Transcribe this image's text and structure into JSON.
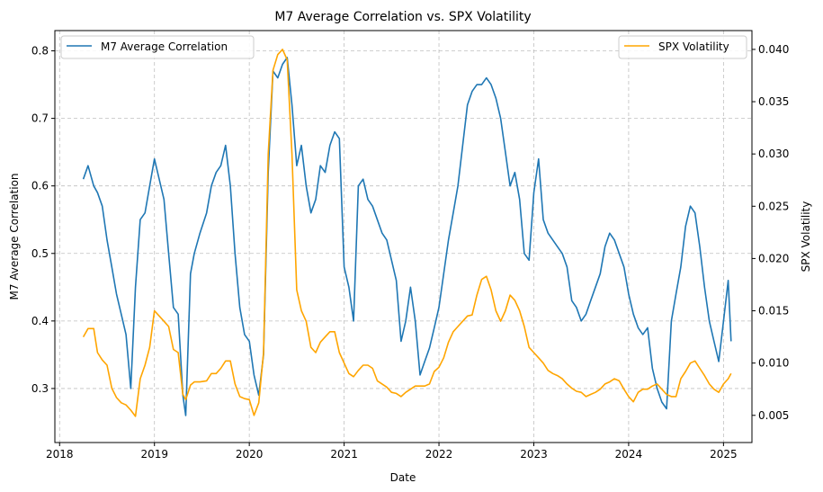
{
  "chart_data": {
    "type": "line",
    "title": "M7 Average Correlation vs. SPX Volatility",
    "xlabel": "Date",
    "ylabel": "M7 Average Correlation",
    "y2label": "SPX Volatility",
    "xlim": [
      2017.95,
      2025.3
    ],
    "ylim": [
      0.22,
      0.83
    ],
    "y2lim": [
      0.0024,
      0.0418
    ],
    "x_ticks": [
      "2018",
      "2019",
      "2020",
      "2021",
      "2022",
      "2023",
      "2024",
      "2025"
    ],
    "y_ticks": [
      "0.3",
      "0.4",
      "0.5",
      "0.6",
      "0.7",
      "0.8"
    ],
    "y2_ticks": [
      "0.005",
      "0.010",
      "0.015",
      "0.020",
      "0.025",
      "0.030",
      "0.035",
      "0.040"
    ],
    "grid": true,
    "series": [
      {
        "name": "M7 Average Correlation",
        "color": "#1f77b4",
        "axis": "left",
        "legend": "top-left",
        "x": [
          2018.25,
          2018.3,
          2018.36,
          2018.4,
          2018.45,
          2018.5,
          2018.55,
          2018.6,
          2018.65,
          2018.7,
          2018.75,
          2018.8,
          2018.85,
          2018.9,
          2018.95,
          2019.0,
          2019.05,
          2019.1,
          2019.15,
          2019.2,
          2019.25,
          2019.3,
          2019.33,
          2019.38,
          2019.42,
          2019.48,
          2019.55,
          2019.6,
          2019.65,
          2019.7,
          2019.75,
          2019.8,
          2019.85,
          2019.9,
          2019.95,
          2020.0,
          2020.05,
          2020.1,
          2020.15,
          2020.2,
          2020.25,
          2020.3,
          2020.35,
          2020.4,
          2020.45,
          2020.5,
          2020.55,
          2020.6,
          2020.65,
          2020.7,
          2020.75,
          2020.8,
          2020.85,
          2020.9,
          2020.95,
          2021.0,
          2021.05,
          2021.1,
          2021.15,
          2021.2,
          2021.25,
          2021.3,
          2021.35,
          2021.4,
          2021.45,
          2021.5,
          2021.55,
          2021.6,
          2021.65,
          2021.7,
          2021.75,
          2021.8,
          2021.85,
          2021.9,
          2021.95,
          2022.0,
          2022.05,
          2022.1,
          2022.15,
          2022.2,
          2022.25,
          2022.3,
          2022.35,
          2022.4,
          2022.45,
          2022.5,
          2022.55,
          2022.6,
          2022.65,
          2022.7,
          2022.75,
          2022.8,
          2022.85,
          2022.9,
          2022.95,
          2023.0,
          2023.05,
          2023.1,
          2023.15,
          2023.2,
          2023.25,
          2023.3,
          2023.35,
          2023.4,
          2023.45,
          2023.5,
          2023.55,
          2023.6,
          2023.65,
          2023.7,
          2023.75,
          2023.8,
          2023.85,
          2023.9,
          2023.95,
          2024.0,
          2024.05,
          2024.1,
          2024.15,
          2024.2,
          2024.25,
          2024.3,
          2024.35,
          2024.4,
          2024.45,
          2024.5,
          2024.55,
          2024.6,
          2024.65,
          2024.7,
          2024.75,
          2024.8,
          2024.85,
          2024.9,
          2024.95,
          2025.0,
          2025.05,
          2025.08
        ],
        "values": [
          0.61,
          0.63,
          0.6,
          0.59,
          0.57,
          0.52,
          0.48,
          0.44,
          0.41,
          0.38,
          0.3,
          0.45,
          0.55,
          0.56,
          0.6,
          0.64,
          0.61,
          0.58,
          0.5,
          0.42,
          0.41,
          0.29,
          0.26,
          0.47,
          0.5,
          0.53,
          0.56,
          0.6,
          0.62,
          0.63,
          0.66,
          0.6,
          0.5,
          0.42,
          0.38,
          0.37,
          0.32,
          0.29,
          0.35,
          0.62,
          0.77,
          0.76,
          0.78,
          0.79,
          0.72,
          0.63,
          0.66,
          0.6,
          0.56,
          0.58,
          0.63,
          0.62,
          0.66,
          0.68,
          0.67,
          0.48,
          0.45,
          0.4,
          0.6,
          0.61,
          0.58,
          0.57,
          0.55,
          0.53,
          0.52,
          0.49,
          0.46,
          0.37,
          0.4,
          0.45,
          0.4,
          0.32,
          0.34,
          0.36,
          0.39,
          0.42,
          0.47,
          0.52,
          0.56,
          0.6,
          0.66,
          0.72,
          0.74,
          0.75,
          0.75,
          0.76,
          0.75,
          0.73,
          0.7,
          0.65,
          0.6,
          0.62,
          0.58,
          0.5,
          0.49,
          0.59,
          0.64,
          0.55,
          0.53,
          0.52,
          0.51,
          0.5,
          0.48,
          0.43,
          0.42,
          0.4,
          0.41,
          0.43,
          0.45,
          0.47,
          0.51,
          0.53,
          0.52,
          0.5,
          0.48,
          0.44,
          0.41,
          0.39,
          0.38,
          0.39,
          0.33,
          0.3,
          0.28,
          0.27,
          0.4,
          0.44,
          0.48,
          0.54,
          0.57,
          0.56,
          0.51,
          0.45,
          0.4,
          0.37,
          0.34,
          0.4,
          0.46,
          0.37
        ]
      },
      {
        "name": "SPX Volatility",
        "color": "#ffa500",
        "axis": "right",
        "legend": "top-right",
        "x": [
          2018.25,
          2018.3,
          2018.36,
          2018.4,
          2018.45,
          2018.5,
          2018.55,
          2018.6,
          2018.65,
          2018.7,
          2018.75,
          2018.8,
          2018.85,
          2018.9,
          2018.95,
          2019.0,
          2019.05,
          2019.1,
          2019.15,
          2019.2,
          2019.25,
          2019.3,
          2019.33,
          2019.38,
          2019.42,
          2019.48,
          2019.55,
          2019.6,
          2019.65,
          2019.7,
          2019.75,
          2019.8,
          2019.85,
          2019.9,
          2019.95,
          2020.0,
          2020.05,
          2020.1,
          2020.15,
          2020.2,
          2020.25,
          2020.3,
          2020.35,
          2020.4,
          2020.45,
          2020.5,
          2020.55,
          2020.6,
          2020.65,
          2020.7,
          2020.75,
          2020.8,
          2020.85,
          2020.9,
          2020.95,
          2021.0,
          2021.05,
          2021.1,
          2021.15,
          2021.2,
          2021.25,
          2021.3,
          2021.35,
          2021.4,
          2021.45,
          2021.5,
          2021.55,
          2021.6,
          2021.65,
          2021.7,
          2021.75,
          2021.8,
          2021.85,
          2021.9,
          2021.95,
          2022.0,
          2022.05,
          2022.1,
          2022.15,
          2022.2,
          2022.25,
          2022.3,
          2022.35,
          2022.4,
          2022.45,
          2022.5,
          2022.55,
          2022.6,
          2022.65,
          2022.7,
          2022.75,
          2022.8,
          2022.85,
          2022.9,
          2022.95,
          2023.0,
          2023.05,
          2023.1,
          2023.15,
          2023.2,
          2023.25,
          2023.3,
          2023.35,
          2023.4,
          2023.45,
          2023.5,
          2023.55,
          2023.6,
          2023.65,
          2023.7,
          2023.75,
          2023.8,
          2023.85,
          2023.9,
          2023.95,
          2024.0,
          2024.05,
          2024.1,
          2024.15,
          2024.2,
          2024.25,
          2024.3,
          2024.35,
          2024.4,
          2024.45,
          2024.5,
          2024.55,
          2024.6,
          2024.65,
          2024.7,
          2024.75,
          2024.8,
          2024.85,
          2024.9,
          2024.95,
          2025.0,
          2025.05,
          2025.08
        ],
        "values": [
          0.0125,
          0.0133,
          0.0133,
          0.011,
          0.0103,
          0.0098,
          0.0076,
          0.0067,
          0.0062,
          0.006,
          0.0055,
          0.0049,
          0.0085,
          0.0098,
          0.0115,
          0.015,
          0.0145,
          0.014,
          0.0135,
          0.0113,
          0.011,
          0.007,
          0.0065,
          0.0079,
          0.0082,
          0.0082,
          0.0083,
          0.009,
          0.009,
          0.0095,
          0.0102,
          0.0102,
          0.008,
          0.0068,
          0.0066,
          0.0065,
          0.005,
          0.0062,
          0.011,
          0.03,
          0.038,
          0.0395,
          0.04,
          0.039,
          0.03,
          0.017,
          0.015,
          0.014,
          0.0115,
          0.011,
          0.012,
          0.0125,
          0.013,
          0.013,
          0.011,
          0.01,
          0.009,
          0.0087,
          0.0093,
          0.0098,
          0.0098,
          0.0095,
          0.0083,
          0.008,
          0.0077,
          0.0072,
          0.0071,
          0.0068,
          0.0072,
          0.0075,
          0.0078,
          0.0078,
          0.0078,
          0.008,
          0.0092,
          0.0096,
          0.0105,
          0.012,
          0.013,
          0.0135,
          0.014,
          0.0145,
          0.0146,
          0.0165,
          0.018,
          0.0183,
          0.017,
          0.015,
          0.014,
          0.015,
          0.0165,
          0.016,
          0.015,
          0.0135,
          0.0115,
          0.011,
          0.0105,
          0.01,
          0.0093,
          0.009,
          0.0088,
          0.0085,
          0.008,
          0.0076,
          0.0073,
          0.0072,
          0.0068,
          0.007,
          0.0072,
          0.0075,
          0.008,
          0.0082,
          0.0085,
          0.0083,
          0.0075,
          0.0068,
          0.0063,
          0.0072,
          0.0075,
          0.0075,
          0.0078,
          0.008,
          0.0075,
          0.007,
          0.0068,
          0.0068,
          0.0085,
          0.0092,
          0.01,
          0.0102,
          0.0095,
          0.0088,
          0.008,
          0.0075,
          0.0072,
          0.008,
          0.0085,
          0.009
        ]
      }
    ]
  }
}
